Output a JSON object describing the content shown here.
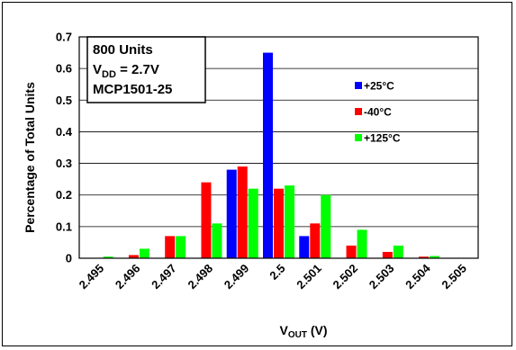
{
  "chart_data": {
    "type": "bar",
    "xlabel": "V",
    "xlabel_sub": "OUT",
    "xlabel_unit": " (V)",
    "ylabel": "Percentage of Total Units",
    "ylim": [
      0,
      0.7
    ],
    "yticks": [
      "0",
      "0.1",
      "0.2",
      "0.3",
      "0.4",
      "0.5",
      "0.6",
      "0.7"
    ],
    "categories": [
      "2.495",
      "2.496",
      "2.497",
      "2.498",
      "2.499",
      "2.5",
      "2.501",
      "2.502",
      "2.503",
      "2.504",
      "2.505"
    ],
    "grid": "horizontal",
    "legend_placement": "right",
    "series": [
      {
        "name": "+25°C",
        "color": "#0000ff",
        "values": [
          0,
          0,
          0,
          0,
          0.28,
          0.65,
          0.07,
          0,
          0,
          0,
          0
        ]
      },
      {
        "name": "-40°C",
        "color": "#ff0000",
        "values": [
          0,
          0.01,
          0.07,
          0.24,
          0.29,
          0.22,
          0.11,
          0.04,
          0.02,
          0.005,
          0
        ]
      },
      {
        "name": "+125°C",
        "color": "#00ff00",
        "values": [
          0.005,
          0.03,
          0.07,
          0.11,
          0.22,
          0.23,
          0.2,
          0.09,
          0.04,
          0.007,
          0
        ]
      }
    ],
    "annotation": {
      "line1": "800 Units",
      "line2_main": "V",
      "line2_sub": "DD",
      "line2_rest": " = 2.7V",
      "line3": "MCP1501-25"
    }
  }
}
